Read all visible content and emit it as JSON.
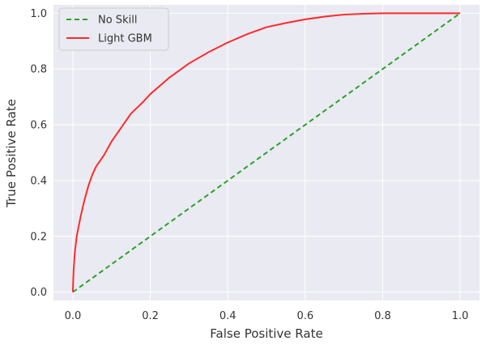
{
  "chart_data": {
    "type": "line",
    "xlabel": "False Positive Rate",
    "ylabel": "True Positive Rate",
    "xlim": [
      -0.05,
      1.05
    ],
    "ylim": [
      -0.03,
      1.03
    ],
    "xticks": [
      "0.0",
      "0.2",
      "0.4",
      "0.6",
      "0.8",
      "1.0"
    ],
    "yticks": [
      "0.0",
      "0.2",
      "0.4",
      "0.6",
      "0.8",
      "1.0"
    ],
    "grid": true,
    "legend": "top-left",
    "background_color": "#eaeaf2",
    "series": [
      {
        "name": "No Skill",
        "color": "#2ca02c",
        "style": "dashed",
        "x": [
          0,
          1
        ],
        "y": [
          0,
          1
        ]
      },
      {
        "name": "Light GBM",
        "color": "#ff2a2a",
        "style": "solid",
        "x": [
          0.0,
          0.002,
          0.005,
          0.01,
          0.02,
          0.03,
          0.04,
          0.05,
          0.06,
          0.08,
          0.1,
          0.12,
          0.15,
          0.18,
          0.2,
          0.25,
          0.3,
          0.35,
          0.4,
          0.45,
          0.5,
          0.55,
          0.6,
          0.65,
          0.7,
          0.75,
          0.8,
          0.85,
          0.9,
          0.95,
          1.0
        ],
        "y": [
          0.0,
          0.08,
          0.14,
          0.2,
          0.27,
          0.33,
          0.38,
          0.42,
          0.45,
          0.49,
          0.54,
          0.58,
          0.64,
          0.68,
          0.71,
          0.77,
          0.82,
          0.86,
          0.895,
          0.925,
          0.95,
          0.965,
          0.978,
          0.988,
          0.995,
          0.998,
          1.0,
          1.0,
          1.0,
          1.0,
          1.0
        ]
      }
    ]
  }
}
